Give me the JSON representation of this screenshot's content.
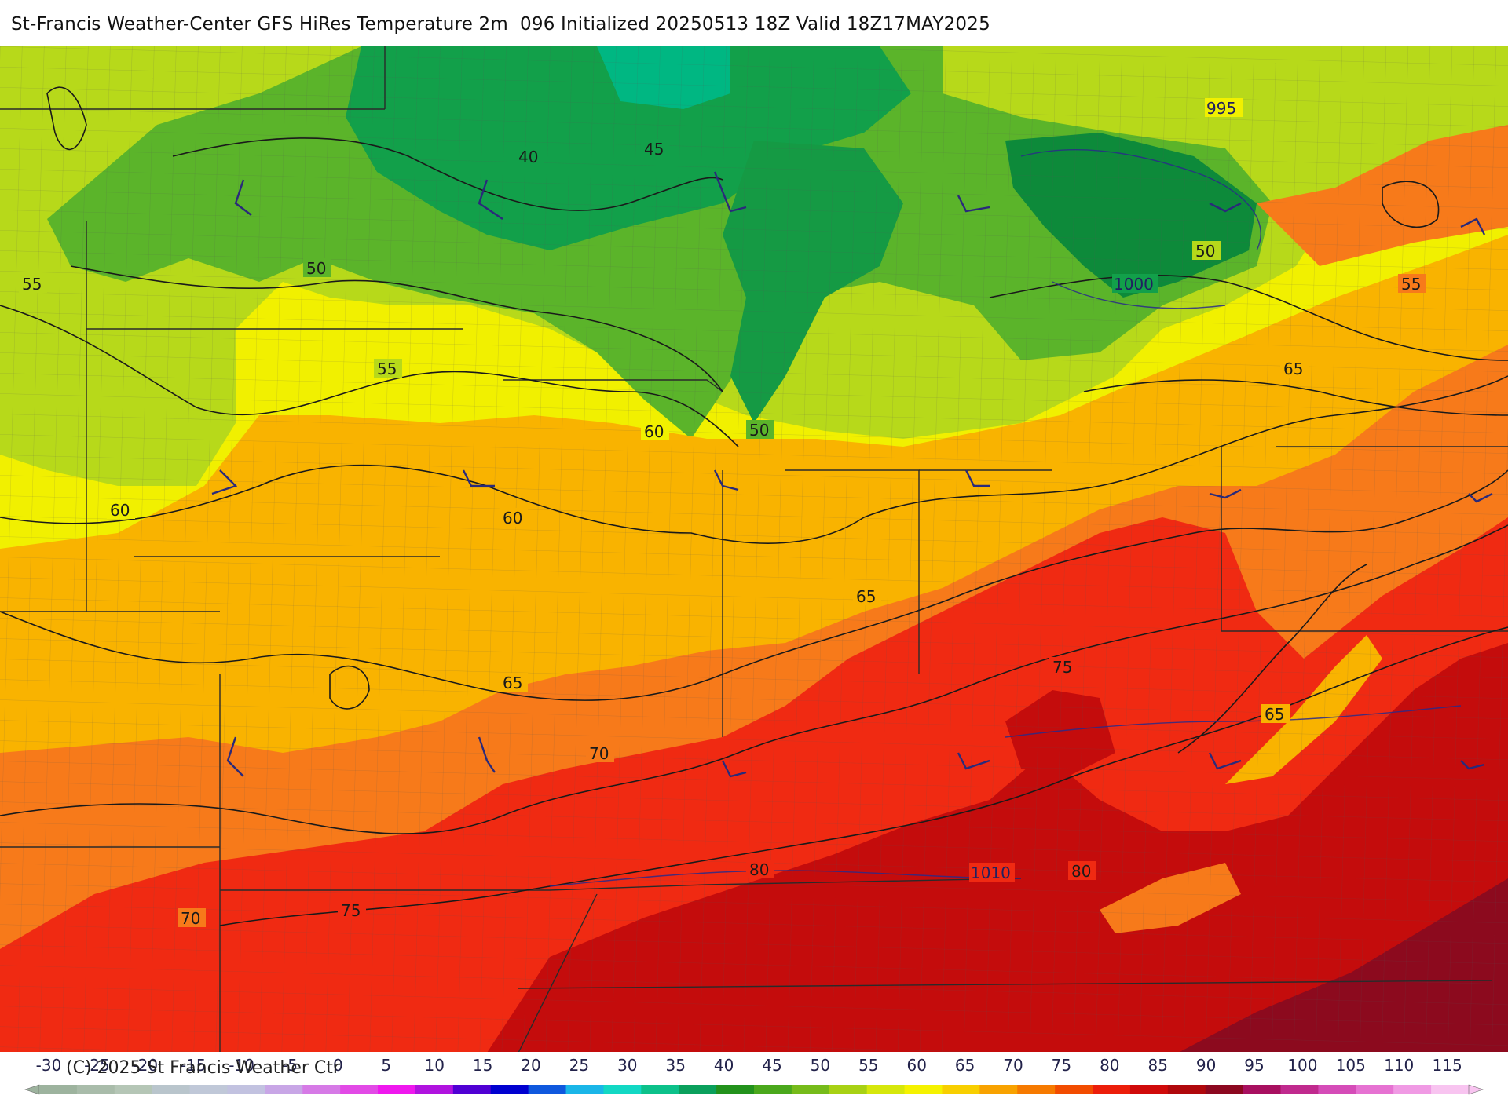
{
  "header": {
    "title": "St-Francis Weather-Center GFS HiRes Temperature 2m  096 Initialized 20250513 18Z Valid 18Z17MAY2025"
  },
  "footer": {
    "copyright": "(C) 2025 St Francis Weather Ctr"
  },
  "map": {
    "variable": "Temperature 2m",
    "units_implied": "°F",
    "temperature_contour_labels": [
      "40",
      "45",
      "50",
      "50",
      "50",
      "50",
      "55",
      "55",
      "55",
      "55",
      "60",
      "60",
      "60",
      "65",
      "65",
      "65",
      "65",
      "70",
      "70",
      "75",
      "75",
      "80",
      "80"
    ],
    "isobar_labels": [
      "995",
      "1000",
      "1010"
    ],
    "colors": {
      "cold_green": "#12a04a",
      "green": "#5bb42a",
      "yellow_green": "#b7d91a",
      "yellow": "#f1f000",
      "orange": "#f9b300",
      "dark_orange": "#f77a1a",
      "red": "#f02a12",
      "dark_red": "#c40c0c",
      "maroon": "#8c0a1e",
      "contour": "#1a1a1a",
      "isobar": "#2a2a8a",
      "borders": "#333333"
    }
  },
  "legend": {
    "ticks": [
      "-30",
      "-25",
      "-20",
      "-15",
      "-10",
      "-5",
      "0",
      "5",
      "10",
      "15",
      "20",
      "25",
      "30",
      "35",
      "40",
      "45",
      "50",
      "55",
      "60",
      "65",
      "70",
      "75",
      "80",
      "85",
      "90",
      "95",
      "100",
      "105",
      "110",
      "115"
    ],
    "color_stops": [
      "#9db39e",
      "#a9bcaa",
      "#b5c6b6",
      "#b9c5cc",
      "#c0c8d8",
      "#c2c2e0",
      "#c8a6e6",
      "#d67ae6",
      "#e24ae6",
      "#ef18ee",
      "#b013df",
      "#5000d4",
      "#0000d0",
      "#0f58de",
      "#1ab6e8",
      "#12d8c4",
      "#0cc18a",
      "#0aa05c",
      "#22921c",
      "#4aa81c",
      "#76bb1a",
      "#a8d114",
      "#d6e70c",
      "#f5f200",
      "#f8cf00",
      "#f8a200",
      "#f67a00",
      "#f24c00",
      "#ec1e0a",
      "#d00a0a",
      "#b0080c",
      "#8c0820",
      "#a81060",
      "#c02a8e",
      "#d54cb8",
      "#e672d2",
      "#f09ae4",
      "#f8c4f0"
    ]
  }
}
